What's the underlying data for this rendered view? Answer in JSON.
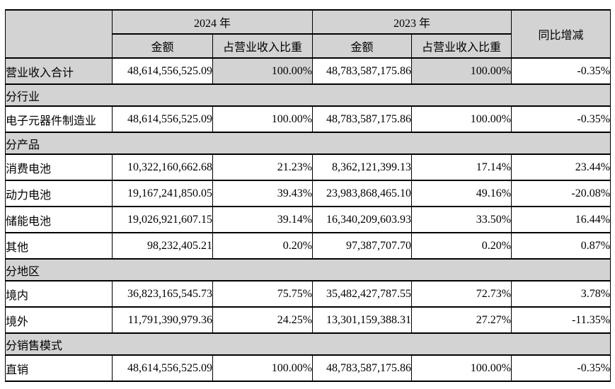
{
  "table": {
    "header": {
      "blank": "",
      "year_2024": "2024 年",
      "year_2023": "2023 年",
      "yoy": "同比增减",
      "amount": "金额",
      "ratio": "占营业收入比重"
    },
    "rows": [
      {
        "type": "data",
        "emphasis": true,
        "label": "营业收入合计",
        "a24": "48,614,556,525.09",
        "r24": "100.00%",
        "a23": "48,783,587,175.86",
        "r23": "100.00%",
        "yoy": "-0.35%"
      },
      {
        "type": "section",
        "label": "分行业"
      },
      {
        "type": "data",
        "emphasis": false,
        "label": "电子元器件制造业",
        "a24": "48,614,556,525.09",
        "r24": "100.00%",
        "a23": "48,783,587,175.86",
        "r23": "100.00%",
        "yoy": "-0.35%"
      },
      {
        "type": "section",
        "label": "分产品"
      },
      {
        "type": "data",
        "emphasis": false,
        "label": "消费电池",
        "a24": "10,322,160,662.68",
        "r24": "21.23%",
        "a23": "8,362,121,399.13",
        "r23": "17.14%",
        "yoy": "23.44%"
      },
      {
        "type": "data",
        "emphasis": false,
        "label": "动力电池",
        "a24": "19,167,241,850.05",
        "r24": "39.43%",
        "a23": "23,983,868,465.10",
        "r23": "49.16%",
        "yoy": "-20.08%"
      },
      {
        "type": "data",
        "emphasis": false,
        "label": "储能电池",
        "a24": "19,026,921,607.15",
        "r24": "39.14%",
        "a23": "16,340,209,603.93",
        "r23": "33.50%",
        "yoy": "16.44%"
      },
      {
        "type": "data",
        "emphasis": false,
        "label": "其他",
        "a24": "98,232,405.21",
        "r24": "0.20%",
        "a23": "97,387,707.70",
        "r23": "0.20%",
        "yoy": "0.87%"
      },
      {
        "type": "section",
        "label": "分地区"
      },
      {
        "type": "data",
        "emphasis": false,
        "label": "境内",
        "a24": "36,823,165,545.73",
        "r24": "75.75%",
        "a23": "35,482,427,787.55",
        "r23": "72.73%",
        "yoy": "3.78%"
      },
      {
        "type": "data",
        "emphasis": false,
        "label": "境外",
        "a24": "11,791,390,979.36",
        "r24": "24.25%",
        "a23": "13,301,159,388.31",
        "r23": "27.27%",
        "yoy": "-11.35%"
      },
      {
        "type": "section",
        "label": "分销售模式"
      },
      {
        "type": "data",
        "emphasis": false,
        "label": "直销",
        "a24": "48,614,556,525.09",
        "r24": "100.00%",
        "a23": "48,783,587,175.86",
        "r23": "100.00%",
        "yoy": "-0.35%"
      }
    ],
    "colors": {
      "header_bg": "#d3d3d3",
      "section_bg": "#d3d3d3",
      "emphasis_bg": "#d3d3d3",
      "border": "#000000",
      "text": "#000000",
      "page_bg": "#ffffff"
    }
  }
}
